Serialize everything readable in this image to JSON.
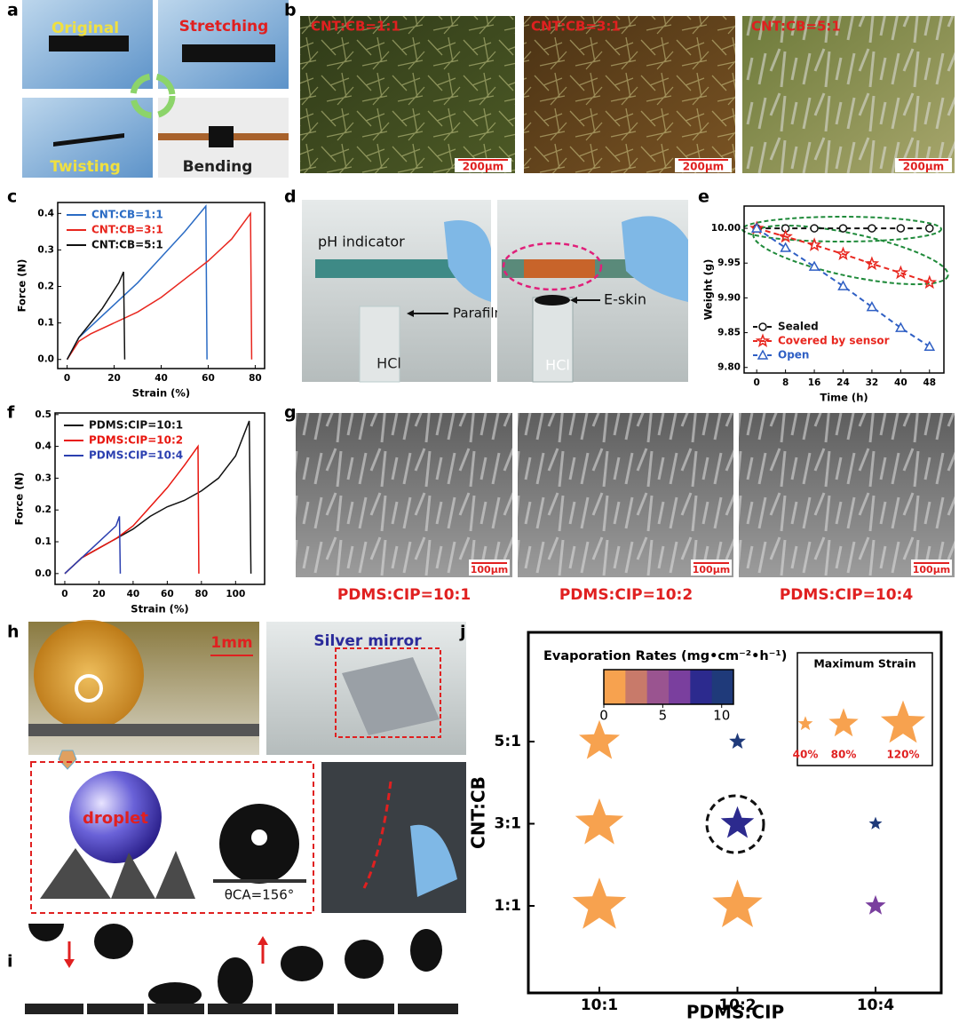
{
  "panel_letters": [
    "a",
    "b",
    "c",
    "d",
    "e",
    "f",
    "g",
    "h",
    "i",
    "j"
  ],
  "panel_a": {
    "labels": [
      "Original",
      "Stretching",
      "Twisting",
      "Bending"
    ]
  },
  "panel_b": {
    "labels": [
      "CNT:CB=1:1",
      "CNT:CB=3:1",
      "CNT:CB=5:1"
    ],
    "scale_bars": [
      "200μm",
      "200μm",
      "200μm"
    ]
  },
  "panel_d": {
    "labels": [
      "pH indicator",
      "Parafilm",
      "HCl",
      "E-skin",
      "HCl"
    ]
  },
  "panel_g": {
    "labels": [
      "PDMS:CIP=10:1",
      "PDMS:CIP=10:2",
      "PDMS:CIP=10:4"
    ],
    "scale_bars": [
      "100μm",
      "100μm",
      "100μm"
    ]
  },
  "panel_h": {
    "scale_bar": "1mm",
    "labels": [
      "Silver mirror",
      "droplet",
      "θCA=156°"
    ]
  },
  "chart_data": [
    {
      "type": "line",
      "x_label": "Strain (%)",
      "y_label": "Force (N)",
      "xlim": [
        -4,
        84
      ],
      "ylim": [
        -0.025,
        0.43
      ],
      "xticks": [
        0,
        20,
        40,
        60,
        80
      ],
      "yticks": [
        {
          "value": 0,
          "label": "0.0"
        },
        0.1,
        0.2,
        0.3,
        0.4
      ],
      "legend": "upper left",
      "series": [
        {
          "name": "CNT:CB=1:1",
          "color": "#2a6bc4",
          "x": [
            0,
            5,
            10,
            20,
            30,
            40,
            50,
            59,
            59.5
          ],
          "values": [
            0,
            0.06,
            0.09,
            0.15,
            0.21,
            0.28,
            0.35,
            0.42,
            0
          ]
        },
        {
          "name": "CNT:CB=3:1",
          "color": "#e8271f",
          "x": [
            0,
            5,
            10,
            20,
            30,
            40,
            50,
            60,
            70,
            78,
            78.5
          ],
          "values": [
            0,
            0.05,
            0.07,
            0.1,
            0.13,
            0.17,
            0.22,
            0.27,
            0.33,
            0.4,
            0
          ]
        },
        {
          "name": "CNT:CB=5:1",
          "color": "#111111",
          "x": [
            0,
            5,
            10,
            15,
            20,
            22,
            24,
            24.5
          ],
          "values": [
            0,
            0.06,
            0.1,
            0.14,
            0.19,
            0.21,
            0.24,
            0
          ]
        }
      ]
    },
    {
      "type": "line",
      "x_label": "Time (h)",
      "y_label": "Weight (g)",
      "xlim": [
        -3.5,
        52
      ],
      "ylim": [
        9.792,
        10.032
      ],
      "xticks": [
        0,
        8,
        16,
        24,
        32,
        40,
        48
      ],
      "yticks": [
        {
          "value": 9.8,
          "label": "9.80"
        },
        9.85,
        {
          "value": 9.9,
          "label": "9.90"
        },
        9.95,
        {
          "value": 10,
          "label": "10.00"
        }
      ],
      "legend": "lower left",
      "line_style": "dashed",
      "x": [
        0,
        8,
        16,
        24,
        32,
        40,
        48
      ],
      "series": [
        {
          "name": "Sealed",
          "color": "#111111",
          "marker": "circle",
          "values": [
            10,
            10,
            10,
            10,
            10,
            10,
            10
          ]
        },
        {
          "name": "Covered by sensor",
          "color": "#e8271f",
          "marker": "star",
          "values": [
            10,
            9.988,
            9.976,
            9.963,
            9.949,
            9.936,
            9.922
          ]
        },
        {
          "name": "Open",
          "color": "#2f5fc4",
          "marker": "triangle",
          "values": [
            10,
            9.972,
            9.945,
            9.917,
            9.887,
            9.857,
            9.83
          ]
        }
      ]
    },
    {
      "type": "line",
      "x_label": "Strain (%)",
      "y_label": "Force (N)",
      "xlim": [
        -5.7,
        117
      ],
      "ylim": [
        -0.034,
        0.505
      ],
      "xticks": [
        0,
        20,
        40,
        60,
        80,
        100
      ],
      "yticks": [
        {
          "value": 0,
          "label": "0.0"
        },
        0.1,
        0.2,
        0.3,
        0.4,
        0.5
      ],
      "legend": "upper left",
      "series": [
        {
          "name": "PDMS:CIP=10:1",
          "color": "#111111",
          "x": [
            0,
            10,
            20,
            30,
            40,
            50,
            60,
            70,
            80,
            90,
            100,
            108,
            109
          ],
          "values": [
            0,
            0.05,
            0.08,
            0.11,
            0.14,
            0.18,
            0.21,
            0.23,
            0.26,
            0.3,
            0.37,
            0.48,
            0
          ]
        },
        {
          "name": "PDMS:CIP=10:2",
          "color": "#e8160f",
          "x": [
            0,
            10,
            20,
            30,
            40,
            50,
            60,
            70,
            78,
            78.5
          ],
          "values": [
            0,
            0.05,
            0.08,
            0.11,
            0.15,
            0.21,
            0.27,
            0.34,
            0.4,
            0
          ]
        },
        {
          "name": "PDMS:CIP=10:4",
          "color": "#2b3fb0",
          "x": [
            0,
            10,
            20,
            30,
            32,
            32.5
          ],
          "values": [
            0,
            0.05,
            0.1,
            0.15,
            0.18,
            0
          ]
        }
      ]
    },
    {
      "type": "bubble",
      "x_label": "PDMS:CIP",
      "y_label": "CNT:CB",
      "x_categories": [
        "10:1",
        "10:2",
        "10:4"
      ],
      "y_categories": [
        "1:1",
        "3:1",
        "5:1"
      ],
      "color_title": "Evaporation Rates (mg•cm⁻²•h⁻¹)",
      "clim": [
        0,
        11
      ],
      "colorbar_ticks": [
        0,
        5,
        10
      ],
      "colorbar_colors": [
        "#f7a24f",
        "#c87a6a",
        "#9a5490",
        "#7a3f9e",
        "#2c2a8e",
        "#1f3a7a"
      ],
      "size_title": "Maximum Strain",
      "size_legend": [
        {
          "value": 40,
          "label": "40%"
        },
        {
          "value": 80,
          "label": "80%"
        },
        {
          "value": 120,
          "label": "120%"
        }
      ],
      "series": [
        {
          "x": [
            "10:1",
            "10:1",
            "10:1",
            "10:2",
            "10:2",
            "10:2",
            "10:4",
            "10:4"
          ],
          "y": [
            "5:1",
            "3:1",
            "1:1",
            "5:1",
            "3:1",
            "1:1",
            "3:1",
            "1:1"
          ],
          "values": [
            1,
            1,
            1,
            9.5,
            9,
            1,
            9.5,
            5.5
          ],
          "sizes": [
            110,
            130,
            145,
            45,
            90,
            135,
            36,
            55
          ]
        }
      ]
    }
  ]
}
